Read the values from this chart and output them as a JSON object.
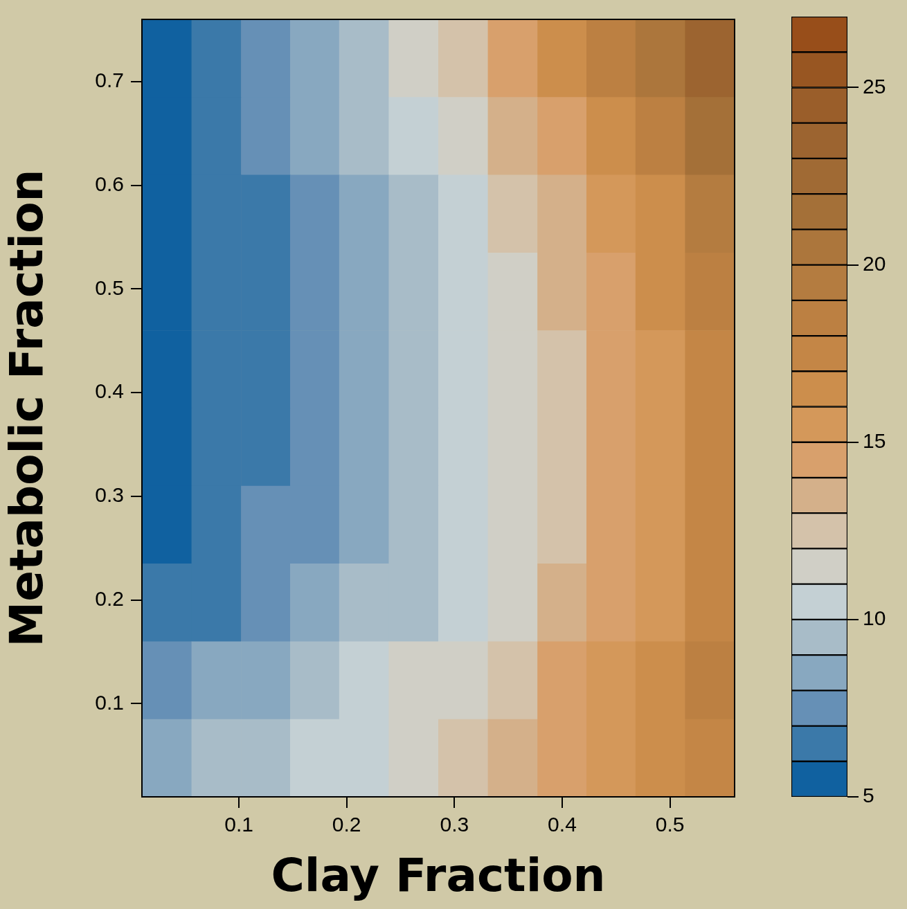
{
  "chart_data": {
    "type": "heatmap",
    "xlabel": "Clay Fraction",
    "ylabel": "Metabolic Fraction",
    "x": [
      0.033,
      0.079,
      0.125,
      0.17,
      0.216,
      0.262,
      0.308,
      0.354,
      0.4,
      0.445,
      0.491,
      0.537
    ],
    "y": [
      0.7225,
      0.6475,
      0.5725,
      0.4975,
      0.4225,
      0.3475,
      0.2725,
      0.1975,
      0.1225,
      0.0475
    ],
    "xlim": [
      0.01,
      0.56
    ],
    "xticks": [
      0.1,
      0.2,
      0.3,
      0.4,
      0.5
    ],
    "ylim": [
      0.01,
      0.76
    ],
    "yticks": [
      0.1,
      0.2,
      0.3,
      0.4,
      0.5,
      0.6,
      0.7
    ],
    "clim": [
      5,
      27
    ],
    "cticks": [
      5,
      10,
      15,
      20,
      25
    ],
    "colors": [
      "#1061a0",
      "#3b79a9",
      "#6690b6",
      "#88a8c0",
      "#a8bcc8",
      "#c4d0d4",
      "#d0cfc6",
      "#d4c2aa",
      "#d4b08a",
      "#d8a06c",
      "#d4985a",
      "#cc8e4c",
      "#c48646",
      "#bc8042",
      "#b47c40",
      "#ac763c",
      "#a47038",
      "#a06a34",
      "#9c6430",
      "#9a5e2a",
      "#985622",
      "#984e1a"
    ],
    "cells": [
      [
        5.9,
        6.7,
        7.6,
        8.7,
        9.8,
        11.0,
        12.5,
        14.3,
        16.2,
        18.2,
        20.6,
        23.8
      ],
      [
        5.6,
        6.4,
        7.1,
        8.0,
        9.0,
        10.2,
        11.5,
        13.0,
        14.6,
        16.5,
        18.6,
        21.4
      ],
      [
        5.5,
        6.2,
        6.9,
        7.7,
        8.6,
        9.6,
        10.8,
        12.1,
        13.5,
        15.1,
        16.9,
        19.0
      ],
      [
        5.4,
        6.1,
        6.8,
        7.6,
        8.4,
        9.4,
        10.5,
        11.7,
        13.0,
        14.5,
        16.2,
        18.2
      ],
      [
        5.4,
        6.0,
        6.8,
        7.6,
        8.3,
        9.4,
        10.4,
        11.6,
        12.8,
        14.3,
        15.9,
        17.7
      ],
      [
        5.4,
        6.1,
        6.8,
        7.6,
        8.3,
        9.3,
        10.3,
        11.5,
        12.7,
        14.2,
        15.7,
        17.4
      ],
      [
        5.8,
        6.4,
        7.0,
        7.7,
        8.6,
        9.5,
        10.5,
        11.6,
        12.8,
        14.3,
        15.8,
        17.5
      ],
      [
        6.3,
        6.9,
        7.5,
        8.2,
        9.0,
        9.8,
        10.8,
        11.9,
        13.0,
        14.4,
        15.9,
        17.4
      ],
      [
        7.2,
        8.1,
        8.7,
        9.4,
        10.2,
        11.0,
        11.9,
        12.9,
        14.0,
        15.2,
        16.6,
        18.0
      ],
      [
        8.4,
        9.1,
        9.6,
        10.0,
        10.7,
        11.5,
        12.2,
        13.2,
        14.2,
        15.4,
        16.8,
        17.7
      ]
    ]
  }
}
